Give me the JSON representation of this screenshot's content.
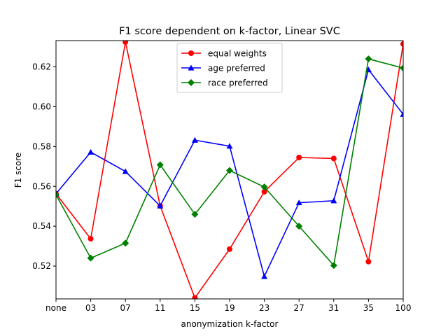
{
  "chart_data": {
    "type": "line",
    "title": "F1 score dependent on k-factor, Linear SVC",
    "xlabel": "anonymization k-factor",
    "ylabel": "F1 score",
    "categories": [
      "none",
      "03",
      "07",
      "11",
      "15",
      "19",
      "23",
      "27",
      "31",
      "35",
      "100"
    ],
    "ylim": [
      0.5035,
      0.6332
    ],
    "yticks": [
      0.52,
      0.54,
      0.56,
      0.58,
      0.6,
      0.62
    ],
    "ytick_labels": [
      "0.52",
      "0.54",
      "0.56",
      "0.58",
      "0.60",
      "0.62"
    ],
    "grid": false,
    "legend_position": "top-center",
    "series": [
      {
        "name": "equal weights",
        "color": "#ff0000",
        "marker": "circle",
        "values": [
          0.5563,
          0.5337,
          0.6325,
          0.5502,
          0.504,
          0.5285,
          0.5573,
          0.5745,
          0.574,
          0.5222,
          0.6315
        ]
      },
      {
        "name": "age preferred",
        "color": "#0000ff",
        "marker": "triangle",
        "values": [
          0.5563,
          0.5772,
          0.5675,
          0.5502,
          0.5832,
          0.5802,
          0.5148,
          0.5518,
          0.5528,
          0.6186,
          0.5962
        ]
      },
      {
        "name": "race preferred",
        "color": "#008000",
        "marker": "diamond",
        "values": [
          0.5558,
          0.524,
          0.5315,
          0.5708,
          0.546,
          0.568,
          0.5597,
          0.54,
          0.5203,
          0.624,
          0.6194
        ]
      }
    ]
  }
}
